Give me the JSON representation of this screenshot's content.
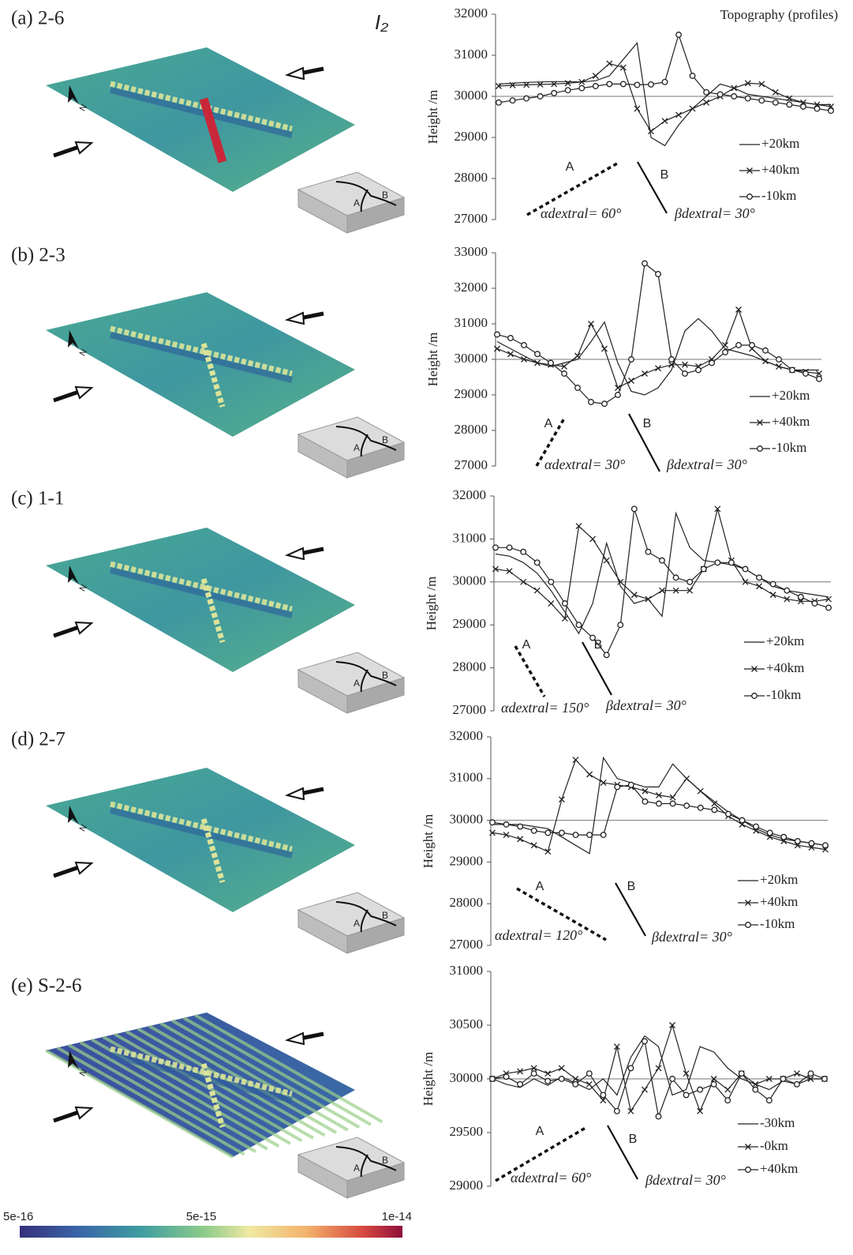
{
  "figure_label": "I₂",
  "chart_data": [
    {
      "type": "line",
      "title": "(a) 2-6",
      "note": "Topography (profiles)",
      "ylabel": "Height /m",
      "categories": [
        null,
        null,
        null,
        null,
        null,
        null,
        null,
        null,
        null,
        null,
        null,
        null,
        null,
        null,
        null,
        null,
        null,
        null,
        null,
        null,
        null,
        null,
        null,
        null,
        null
      ],
      "series": [
        {
          "name": "+20km",
          "color": "#222222",
          "marker": "none",
          "values": [
            30300,
            30320,
            30340,
            30350,
            30360,
            30360,
            30350,
            30380,
            30500,
            30900,
            31300,
            29000,
            28800,
            29300,
            29700,
            30000,
            30300,
            30200,
            30050,
            30000,
            29950,
            29900,
            29850,
            29800,
            29800
          ]
        },
        {
          "name": "+40km",
          "color": "#222222",
          "marker": "x",
          "values": [
            30250,
            30270,
            30280,
            30290,
            30300,
            30320,
            30350,
            30500,
            30800,
            30700,
            29700,
            29150,
            29400,
            29550,
            29700,
            29850,
            30000,
            30200,
            30320,
            30300,
            30100,
            29950,
            29850,
            29800,
            29750
          ]
        },
        {
          "name": "-10km",
          "color": "#222222",
          "marker": "circle",
          "values": [
            29850,
            29900,
            29950,
            30000,
            30080,
            30150,
            30200,
            30250,
            30300,
            30300,
            30280,
            30290,
            30350,
            31500,
            30500,
            30100,
            30050,
            30000,
            29950,
            29900,
            29850,
            29800,
            29750,
            29700,
            29650
          ]
        }
      ],
      "ylim": [
        27000,
        32000
      ],
      "yticks": [
        27000,
        28000,
        29000,
        30000,
        31000,
        32000
      ],
      "baseline": 30000,
      "annotations": [
        "A",
        "B",
        "αdextral= 60°",
        "βdextral= 30°"
      ],
      "block_labels": [
        "A",
        "B"
      ],
      "north": "N"
    },
    {
      "type": "line",
      "title": "(b) 2-3",
      "ylabel": "Height /m",
      "categories": [
        null,
        null,
        null,
        null,
        null,
        null,
        null,
        null,
        null,
        null,
        null,
        null,
        null,
        null,
        null,
        null,
        null,
        null,
        null,
        null,
        null,
        null,
        null,
        null,
        null
      ],
      "series": [
        {
          "name": "+20km",
          "color": "#222222",
          "marker": "none",
          "values": [
            30500,
            30300,
            30100,
            29900,
            29800,
            29900,
            30000,
            30500,
            31050,
            29900,
            29100,
            29000,
            29200,
            29700,
            30800,
            31150,
            30800,
            30300,
            30200,
            30100,
            29950,
            29800,
            29700,
            29700,
            29700
          ]
        },
        {
          "name": "+40km",
          "color": "#222222",
          "marker": "x",
          "values": [
            30300,
            30150,
            30000,
            29900,
            29850,
            29800,
            30100,
            31000,
            30300,
            29200,
            29400,
            29600,
            29750,
            29850,
            29850,
            29800,
            30000,
            30400,
            31400,
            30300,
            29950,
            29800,
            29700,
            29650,
            29600
          ]
        },
        {
          "name": "-10km",
          "color": "#222222",
          "marker": "circle",
          "values": [
            30700,
            30600,
            30400,
            30150,
            29900,
            29600,
            29200,
            28800,
            28750,
            29000,
            30000,
            32700,
            32400,
            30000,
            29600,
            29700,
            29900,
            30200,
            30400,
            30400,
            30250,
            30000,
            29700,
            29600,
            29450
          ]
        }
      ],
      "ylim": [
        27000,
        33000
      ],
      "yticks": [
        27000,
        28000,
        29000,
        30000,
        31000,
        32000,
        33000
      ],
      "baseline": 30000,
      "annotations": [
        "A",
        "B",
        "αdextral= 30°",
        "βdextral= 30°"
      ],
      "block_labels": [
        "A",
        "B"
      ],
      "north": "N"
    },
    {
      "type": "line",
      "title": "(c) 1-1",
      "ylabel": "Height /m",
      "categories": [
        null,
        null,
        null,
        null,
        null,
        null,
        null,
        null,
        null,
        null,
        null,
        null,
        null,
        null,
        null,
        null,
        null,
        null,
        null,
        null,
        null,
        null,
        null,
        null,
        null
      ],
      "series": [
        {
          "name": "+20km",
          "color": "#222222",
          "marker": "none",
          "values": [
            30650,
            30600,
            30450,
            30200,
            29800,
            29300,
            28800,
            29500,
            30900,
            29900,
            29500,
            29600,
            29200,
            31600,
            30800,
            30500,
            30450,
            30400,
            30300,
            30100,
            29900,
            29800,
            29750,
            29700,
            29650
          ]
        },
        {
          "name": "+40km",
          "color": "#222222",
          "marker": "x",
          "values": [
            30300,
            30250,
            30000,
            29800,
            29500,
            29150,
            31300,
            31000,
            30500,
            30000,
            29700,
            29600,
            29800,
            29800,
            29800,
            30300,
            31700,
            30500,
            30000,
            29900,
            29700,
            29600,
            29550,
            29550,
            29600
          ]
        },
        {
          "name": "-10km",
          "color": "#222222",
          "marker": "circle",
          "values": [
            30800,
            30800,
            30700,
            30450,
            30000,
            29500,
            29000,
            28700,
            28300,
            29000,
            31700,
            30700,
            30500,
            30100,
            30000,
            30300,
            30450,
            30450,
            30300,
            30100,
            29950,
            29800,
            29650,
            29500,
            29400
          ]
        }
      ],
      "ylim": [
        27000,
        32000
      ],
      "yticks": [
        27000,
        28000,
        29000,
        30000,
        31000,
        32000
      ],
      "baseline": 30000,
      "annotations": [
        "A",
        "B",
        "αdextral= 150°",
        "βdextral= 30°"
      ],
      "block_labels": [
        "A",
        "B"
      ],
      "north": "N"
    },
    {
      "type": "line",
      "title": "(d) 2-7",
      "ylabel": "Height /m",
      "categories": [
        null,
        null,
        null,
        null,
        null,
        null,
        null,
        null,
        null,
        null,
        null,
        null,
        null,
        null,
        null,
        null,
        null,
        null,
        null,
        null,
        null,
        null,
        null,
        null,
        null
      ],
      "series": [
        {
          "name": "+20km",
          "color": "#222222",
          "marker": "none",
          "values": [
            29900,
            29900,
            29900,
            29850,
            29800,
            29600,
            29400,
            29200,
            31500,
            31000,
            30900,
            30800,
            30800,
            31350,
            31000,
            30700,
            30450,
            30200,
            30000,
            29800,
            29650,
            29550,
            29500,
            29450,
            29400
          ]
        },
        {
          "name": "+40km",
          "color": "#222222",
          "marker": "x",
          "values": [
            29700,
            29650,
            29550,
            29400,
            29250,
            30500,
            31450,
            31100,
            30900,
            30850,
            30800,
            30700,
            30600,
            30550,
            31000,
            30700,
            30400,
            30100,
            29900,
            29750,
            29600,
            29500,
            29400,
            29350,
            29300
          ]
        },
        {
          "name": "-10km",
          "color": "#222222",
          "marker": "circle",
          "values": [
            29950,
            29900,
            29850,
            29750,
            29700,
            29700,
            29650,
            29650,
            29650,
            30800,
            30850,
            30450,
            30400,
            30400,
            30350,
            30300,
            30250,
            30150,
            30000,
            29850,
            29700,
            29600,
            29500,
            29450,
            29400
          ]
        }
      ],
      "ylim": [
        27000,
        32000
      ],
      "yticks": [
        27000,
        28000,
        29000,
        30000,
        31000,
        32000
      ],
      "baseline": 30000,
      "annotations": [
        "A",
        "B",
        "αdextral= 120°",
        "βdextral= 30°"
      ],
      "block_labels": [
        "A",
        "B"
      ],
      "north": "N"
    },
    {
      "type": "line",
      "title": "(e) S-2-6",
      "ylabel": "Height /m",
      "categories": [
        null,
        null,
        null,
        null,
        null,
        null,
        null,
        null,
        null,
        null,
        null,
        null,
        null,
        null,
        null,
        null,
        null,
        null,
        null,
        null,
        null,
        null,
        null,
        null,
        null
      ],
      "series": [
        {
          "name": "-30km",
          "color": "#222222",
          "marker": "none",
          "values": [
            30000,
            29950,
            29920,
            30000,
            29940,
            30020,
            29960,
            29900,
            30000,
            29850,
            30200,
            30400,
            30300,
            29850,
            29900,
            30300,
            30250,
            30100,
            30000,
            29950,
            29900,
            29980,
            29950,
            30000,
            30000
          ]
        },
        {
          "name": "-0km",
          "color": "#222222",
          "marker": "x",
          "values": [
            30000,
            30050,
            30070,
            30100,
            30050,
            30100,
            30000,
            29950,
            29800,
            30300,
            29700,
            29900,
            30100,
            30500,
            30050,
            29700,
            30000,
            29900,
            30050,
            29950,
            30000,
            30000,
            30050,
            30000,
            30000
          ]
        },
        {
          "name": "+40km",
          "color": "#222222",
          "marker": "circle",
          "values": [
            30000,
            30020,
            29950,
            30050,
            29980,
            30000,
            29950,
            30050,
            29850,
            29700,
            30100,
            30350,
            29650,
            30000,
            29850,
            29900,
            29950,
            29800,
            30050,
            29900,
            29800,
            30000,
            29950,
            30050,
            30000
          ]
        }
      ],
      "ylim": [
        29000,
        31000
      ],
      "yticks": [
        29000,
        29500,
        30000,
        30500,
        31000
      ],
      "baseline": 30000,
      "annotations": [
        "A",
        "B",
        "αdextral= 60°",
        "βdextral= 30°"
      ],
      "block_labels": [
        "A",
        "B"
      ],
      "north": "N"
    }
  ],
  "colorbar": {
    "ticks": [
      "5e-16",
      "5e-15",
      "1e-14"
    ]
  }
}
